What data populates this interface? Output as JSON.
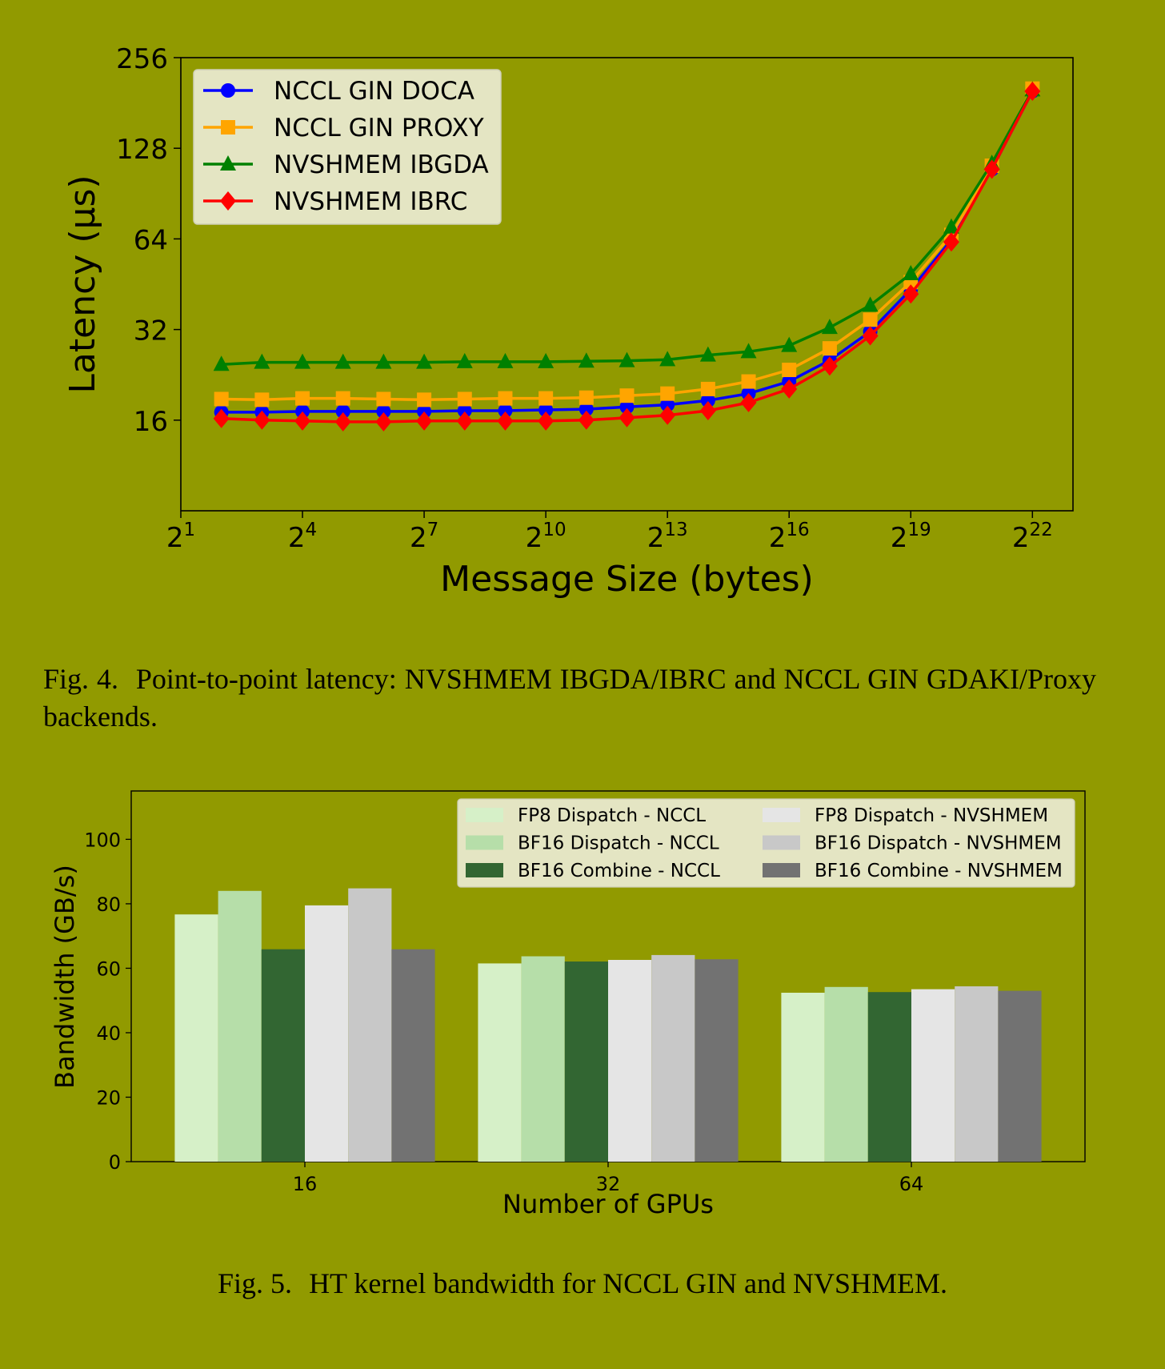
{
  "figure4": {
    "caption_label": "Fig. 4.",
    "caption_text": "Point-to-point latency: NVSHMEM IBGDA/IBRC and NCCL GIN GDAKI/Proxy backends."
  },
  "figure5": {
    "caption_label": "Fig. 5.",
    "caption_text": "HT kernel bandwidth for NCCL GIN and NVSHMEM."
  },
  "chart_data": [
    {
      "type": "line",
      "xlabel": "Message Size (bytes)",
      "ylabel": "Latency (μs)",
      "x_scale": "log2",
      "y_scale": "log2",
      "xlim": [
        2,
        8388608
      ],
      "ylim": [
        8,
        256
      ],
      "x_ticks": [
        2,
        16,
        128,
        1024,
        8192,
        65536,
        524288,
        4194304
      ],
      "x_tick_labels": [
        {
          "base": "2",
          "exp": "1"
        },
        {
          "base": "2",
          "exp": "4"
        },
        {
          "base": "2",
          "exp": "7"
        },
        {
          "base": "2",
          "exp": "10"
        },
        {
          "base": "2",
          "exp": "13"
        },
        {
          "base": "2",
          "exp": "16"
        },
        {
          "base": "2",
          "exp": "19"
        },
        {
          "base": "2",
          "exp": "22"
        }
      ],
      "y_ticks": [
        16,
        32,
        64,
        128,
        256
      ],
      "y_tick_labels": [
        "16",
        "32",
        "64",
        "128",
        "256"
      ],
      "grid": false,
      "legend_position": "top-left",
      "x": [
        4,
        8,
        16,
        32,
        64,
        128,
        256,
        512,
        1024,
        2048,
        4096,
        8192,
        16384,
        32768,
        65536,
        131072,
        262144,
        524288,
        1048576,
        2097152,
        4194304
      ],
      "series": [
        {
          "name": "NCCL GIN DOCA",
          "color": "#0000ff",
          "marker": "circle",
          "values": [
            17.0,
            17.0,
            17.1,
            17.1,
            17.1,
            17.1,
            17.2,
            17.2,
            17.3,
            17.4,
            17.7,
            18.0,
            18.6,
            19.6,
            21.5,
            25.3,
            31.5,
            43.5,
            63.5,
            109.0,
            198.0
          ]
        },
        {
          "name": "NCCL GIN PROXY",
          "color": "#ffa500",
          "marker": "square",
          "values": [
            18.8,
            18.7,
            18.9,
            18.9,
            18.8,
            18.7,
            18.8,
            18.9,
            18.9,
            19.0,
            19.3,
            19.6,
            20.3,
            21.5,
            23.5,
            27.7,
            34.5,
            46.0,
            66.0,
            112.0,
            202.0
          ]
        },
        {
          "name": "NVSHMEM IBGDA",
          "color": "#008000",
          "marker": "triangle",
          "values": [
            24.5,
            24.9,
            24.9,
            24.9,
            24.9,
            24.9,
            25.0,
            25.0,
            25.0,
            25.1,
            25.2,
            25.4,
            26.3,
            27.0,
            28.3,
            32.5,
            38.5,
            49.0,
            70.0,
            114.0,
            200.0
          ]
        },
        {
          "name": "NVSHMEM IBRC",
          "color": "#ff0000",
          "marker": "diamond",
          "values": [
            16.2,
            16.0,
            15.9,
            15.8,
            15.8,
            15.9,
            15.9,
            15.9,
            15.9,
            16.0,
            16.3,
            16.6,
            17.2,
            18.3,
            20.3,
            24.2,
            30.5,
            42.0,
            62.5,
            109.0,
            198.0
          ]
        }
      ]
    },
    {
      "type": "bar",
      "xlabel": "Number of GPUs",
      "ylabel": "Bandwidth (GB/s)",
      "ylim": [
        0,
        115
      ],
      "y_ticks": [
        0,
        20,
        40,
        60,
        80,
        100
      ],
      "categories": [
        "16",
        "32",
        "64"
      ],
      "grid": false,
      "legend_position": "top-right",
      "legend_columns": 2,
      "series": [
        {
          "name": "FP8 Dispatch - NCCL",
          "color": "#d6f0c8",
          "values": [
            76.7,
            61.5,
            52.4
          ]
        },
        {
          "name": "BF16 Dispatch - NCCL",
          "color": "#b6dea9",
          "values": [
            84.0,
            63.7,
            54.2
          ]
        },
        {
          "name": "BF16 Combine - NCCL",
          "color": "#326632",
          "values": [
            65.9,
            62.1,
            52.6
          ]
        },
        {
          "name": "FP8 Dispatch - NVSHMEM",
          "color": "#e5e5e5",
          "values": [
            79.5,
            62.6,
            53.5
          ]
        },
        {
          "name": "BF16 Dispatch - NVSHMEM",
          "color": "#c8c8c8",
          "values": [
            84.8,
            64.1,
            54.4
          ]
        },
        {
          "name": "BF16 Combine - NVSHMEM",
          "color": "#727272",
          "values": [
            65.9,
            62.8,
            53.0
          ]
        }
      ]
    }
  ]
}
